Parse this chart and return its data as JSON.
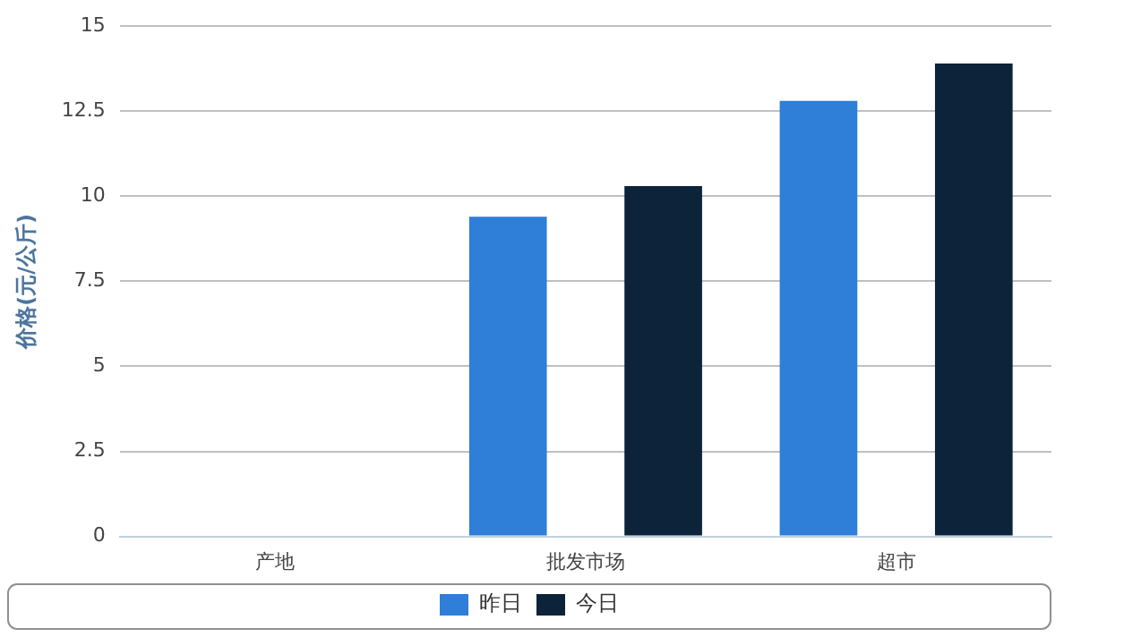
{
  "chart_data": {
    "type": "bar",
    "ylabel": "价格(元/公斤)",
    "categories": [
      "产地",
      "批发市场",
      "超市"
    ],
    "series": [
      {
        "name": "昨日",
        "color": "#2f7ed8",
        "values": [
          null,
          9.4,
          12.8
        ]
      },
      {
        "name": "今日",
        "color": "#0d233a",
        "values": [
          null,
          10.3,
          13.9
        ]
      }
    ],
    "ylim": [
      0,
      15
    ],
    "yticks": [
      0,
      2.5,
      5,
      7.5,
      10,
      12.5,
      15
    ],
    "grid": "y",
    "legend": "bottom"
  }
}
